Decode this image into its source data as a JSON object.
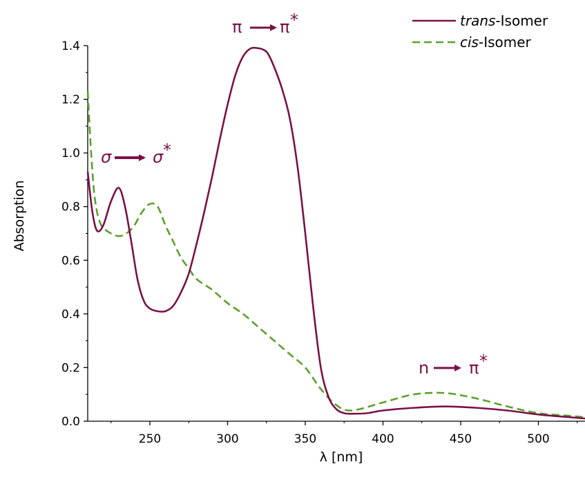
{
  "chart_data": {
    "type": "line",
    "title": "",
    "xlabel": "λ [nm]",
    "ylabel": "Absorption",
    "xlim": [
      210,
      530
    ],
    "ylim": [
      0,
      1.4
    ],
    "x_ticks": [
      250,
      300,
      350,
      400,
      450,
      500
    ],
    "x_tick_labels": [
      "250",
      "300",
      "350",
      "400",
      "450",
      "500"
    ],
    "y_ticks": [
      0.0,
      0.2,
      0.4,
      0.6,
      0.8,
      1.0,
      1.2,
      1.4
    ],
    "y_tick_labels": [
      "0.0",
      "0.2",
      "0.4",
      "0.6",
      "0.8",
      "1.0",
      "1.2",
      "1.4"
    ],
    "grid": false,
    "legend_position": "top-right",
    "colors": {
      "trans": "#7a1048",
      "cis": "#5aa02c",
      "annotation": "#7a1048"
    },
    "series": [
      {
        "name_prefix": "trans",
        "name_suffix": "-Isomer",
        "style": "solid",
        "x": [
          210,
          213,
          216,
          220,
          225,
          230,
          234,
          238,
          242,
          246,
          250,
          255,
          260,
          265,
          270,
          275,
          280,
          285,
          290,
          295,
          300,
          305,
          310,
          315,
          320,
          323,
          326,
          330,
          335,
          340,
          345,
          350,
          355,
          360,
          365,
          370,
          375,
          380,
          390,
          400,
          420,
          440,
          460,
          480,
          500,
          520,
          530
        ],
        "y": [
          0.93,
          0.78,
          0.71,
          0.73,
          0.82,
          0.87,
          0.8,
          0.67,
          0.53,
          0.45,
          0.42,
          0.41,
          0.41,
          0.43,
          0.48,
          0.55,
          0.66,
          0.78,
          0.91,
          1.05,
          1.18,
          1.29,
          1.36,
          1.39,
          1.39,
          1.385,
          1.37,
          1.32,
          1.24,
          1.13,
          0.95,
          0.7,
          0.43,
          0.2,
          0.09,
          0.045,
          0.03,
          0.028,
          0.03,
          0.04,
          0.05,
          0.055,
          0.05,
          0.04,
          0.025,
          0.015,
          0.01
        ]
      },
      {
        "name_prefix": "cis",
        "name_suffix": "-Isomer",
        "style": "dashed",
        "x": [
          210,
          212,
          214,
          216,
          218,
          220,
          225,
          230,
          235,
          240,
          245,
          250,
          255,
          260,
          265,
          270,
          275,
          280,
          290,
          300,
          310,
          320,
          330,
          340,
          350,
          360,
          370,
          380,
          400,
          420,
          440,
          460,
          480,
          500,
          520,
          530
        ],
        "y": [
          1.23,
          1.02,
          0.86,
          0.78,
          0.74,
          0.72,
          0.7,
          0.69,
          0.7,
          0.73,
          0.78,
          0.81,
          0.8,
          0.73,
          0.67,
          0.61,
          0.57,
          0.53,
          0.49,
          0.44,
          0.4,
          0.35,
          0.3,
          0.25,
          0.2,
          0.12,
          0.06,
          0.04,
          0.07,
          0.1,
          0.105,
          0.085,
          0.055,
          0.03,
          0.02,
          0.015
        ]
      }
    ],
    "annotations": [
      {
        "id": "pi",
        "from": "π",
        "to": "π",
        "star": "*"
      },
      {
        "id": "sigma",
        "from": "σ",
        "to": "σ",
        "star": "*"
      },
      {
        "id": "n",
        "from": "n",
        "to": "π",
        "star": "*"
      }
    ]
  }
}
